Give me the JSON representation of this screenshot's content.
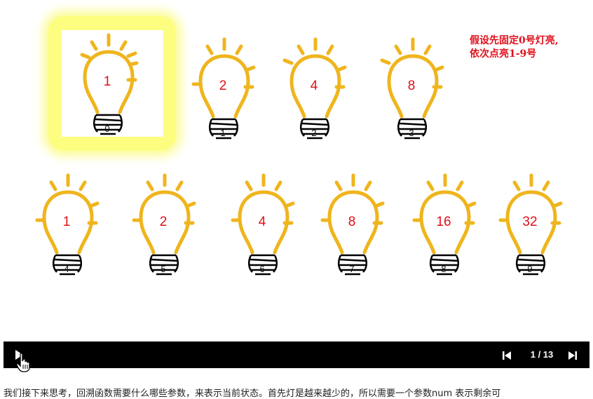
{
  "slide": {
    "note_line1": "假设先固定0号灯亮,",
    "note_line2": "依次点亮1-9号"
  },
  "bulbs_top": [
    {
      "value": "1",
      "index": "0",
      "lit": true
    },
    {
      "value": "2",
      "index": "1",
      "lit": false
    },
    {
      "value": "4",
      "index": "2",
      "lit": false
    },
    {
      "value": "8",
      "index": "3",
      "lit": false
    }
  ],
  "bulbs_bottom": [
    {
      "value": "1",
      "index": "4"
    },
    {
      "value": "2",
      "index": "5"
    },
    {
      "value": "4",
      "index": "6"
    },
    {
      "value": "8",
      "index": "7"
    },
    {
      "value": "16",
      "index": "8"
    },
    {
      "value": "32",
      "index": "9"
    }
  ],
  "player": {
    "counter": "1 / 13",
    "play_icon": "play-icon",
    "prev_icon": "skip-previous-icon",
    "next_icon": "skip-next-icon"
  },
  "caption": "我们接下来思考，回溯函数需要什么哪些参数，来表示当前状态。首先灯是越来越少的，所以需要一个参数num 表示剩余可"
}
